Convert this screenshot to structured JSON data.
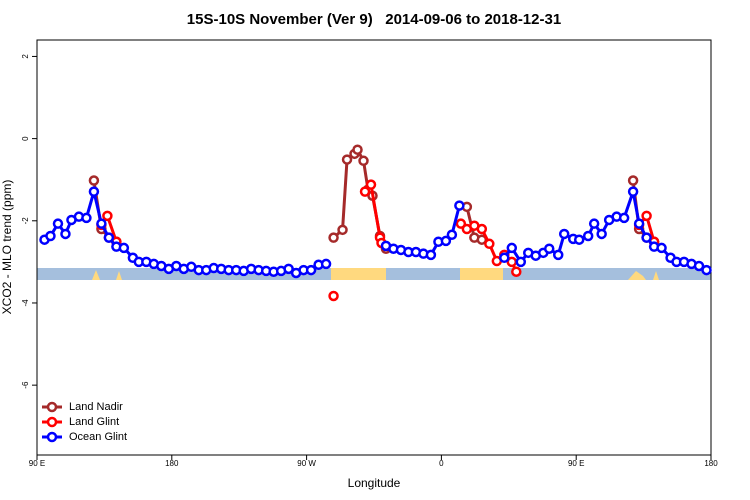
{
  "chart_data": {
    "type": "line",
    "title": "15S-10S November (Ver 9)   2014-09-06 to 2018-12-31",
    "x_label": "Longitude",
    "y_label": "XCO2 - MLO trend (ppm)",
    "xlim": [
      90,
      540
    ],
    "ylim": [
      -7.7,
      2.4
    ],
    "xticks": [
      {
        "value": 90,
        "label": "90 E"
      },
      180,
      {
        "value": 270,
        "label": "90 W"
      },
      {
        "value": 360,
        "label": "0"
      },
      {
        "value": 450,
        "label": "90 E"
      },
      {
        "value": 540,
        "label": "180"
      }
    ],
    "yticks": [
      -6,
      -4,
      -2,
      0,
      2
    ],
    "legend": "bottomleft",
    "series": [
      {
        "name": "Land Nadir",
        "color": "#a52a2a",
        "x": [
          128,
          133,
          138,
          143,
          null,
          288,
          294,
          297,
          302,
          304,
          308,
          311,
          314,
          319,
          323,
          null,
          377,
          382,
          387,
          null,
          488,
          492,
          497,
          502
        ],
        "values": [
          -1.02,
          -2.2,
          -2.41,
          -2.51,
          null,
          -2.41,
          -2.22,
          -0.51,
          -0.37,
          -0.27,
          -0.54,
          -1.24,
          -1.39,
          -2.37,
          -2.68,
          null,
          -1.66,
          -2.41,
          -2.46,
          null,
          -1.02,
          -2.2,
          -2.41,
          -2.51
        ]
      },
      {
        "name": "Land Glint",
        "color": "#ff0000",
        "x": [
          133,
          137,
          143,
          null,
          288,
          null,
          309,
          313,
          319,
          320,
          null,
          373,
          377,
          382,
          387,
          392,
          397,
          402,
          407,
          410,
          null,
          492,
          497,
          502
        ],
        "values": [
          -2.1,
          -1.88,
          -2.51,
          null,
          -3.83,
          null,
          -1.29,
          -1.12,
          -2.41,
          -2.54,
          null,
          -2.07,
          -2.2,
          -2.12,
          -2.2,
          -2.56,
          -2.98,
          -2.83,
          -3.0,
          -3.24,
          null,
          -2.1,
          -1.88,
          -2.51
        ]
      },
      {
        "name": "Ocean Glint",
        "color": "#0000ff",
        "x": [
          95,
          99,
          104,
          109,
          113,
          118,
          123,
          128,
          133,
          138,
          143,
          148,
          154,
          158,
          163,
          168,
          173,
          178,
          183,
          188,
          193,
          198,
          203,
          208,
          213,
          218,
          223,
          228,
          233,
          238,
          243,
          248,
          253,
          258,
          263,
          268,
          273,
          278,
          283,
          null,
          323,
          328,
          333,
          338,
          343,
          348,
          353,
          358,
          363,
          367,
          372,
          null,
          402,
          407,
          413,
          418,
          423,
          428,
          432,
          438,
          442,
          448,
          452,
          458,
          462,
          467,
          472,
          477,
          482,
          488,
          492,
          497,
          502,
          507,
          513,
          517,
          522,
          527,
          532,
          537
        ],
        "values": [
          -2.46,
          -2.37,
          -2.07,
          -2.32,
          -1.98,
          -1.9,
          -1.93,
          -1.29,
          -2.07,
          -2.41,
          -2.63,
          -2.66,
          -2.9,
          -3.0,
          -3.0,
          -3.05,
          -3.1,
          -3.17,
          -3.1,
          -3.17,
          -3.12,
          -3.2,
          -3.2,
          -3.15,
          -3.17,
          -3.2,
          -3.2,
          -3.22,
          -3.17,
          -3.2,
          -3.22,
          -3.24,
          -3.22,
          -3.17,
          -3.27,
          -3.2,
          -3.2,
          -3.07,
          -3.05,
          null,
          -2.61,
          -2.68,
          -2.71,
          -2.76,
          -2.76,
          -2.8,
          -2.83,
          -2.51,
          -2.49,
          -2.34,
          -1.63,
          null,
          -2.9,
          -2.66,
          -3.0,
          -2.78,
          -2.85,
          -2.78,
          -2.68,
          -2.83,
          -2.32,
          -2.44,
          -2.46,
          -2.37,
          -2.07,
          -2.32,
          -1.98,
          -1.9,
          -1.93,
          -1.29,
          -2.07,
          -2.41,
          -2.63,
          -2.66,
          -2.9,
          -3.0,
          -3.0,
          -3.05,
          -3.1,
          -3.2
        ]
      }
    ]
  }
}
